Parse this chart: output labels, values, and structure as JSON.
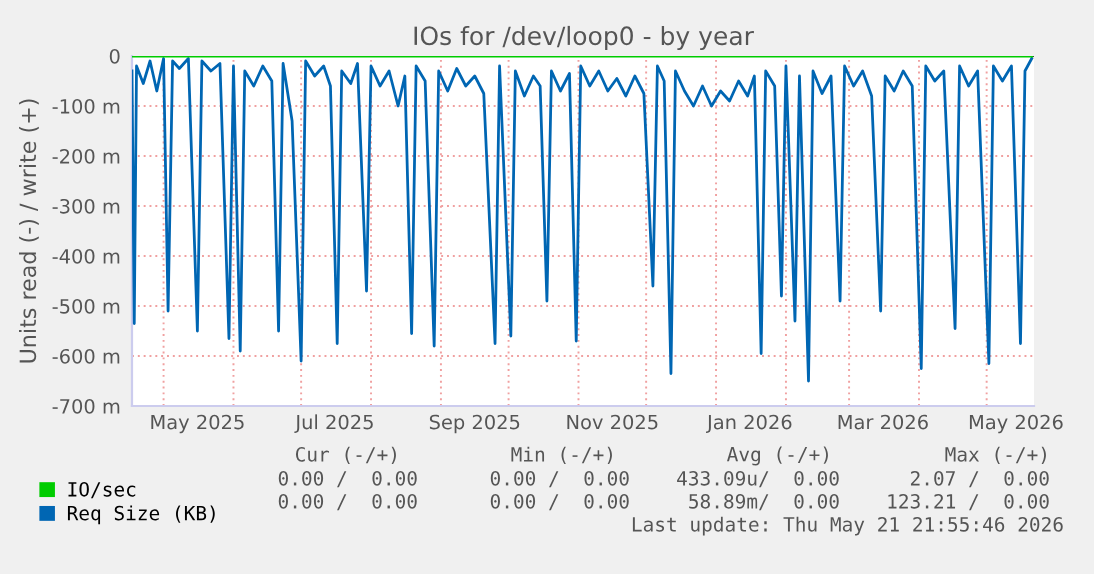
{
  "chart_data": {
    "type": "line",
    "title": "IOs for /dev/loop0 - by year",
    "ylabel": "Units read (-) / write (+)",
    "xlim": [
      "2025-04-17",
      "2026-05-22"
    ],
    "xticks": [
      {
        "value": "2025-05-01",
        "label": null
      },
      {
        "value": "2025-05-16",
        "label": "May 2025"
      },
      {
        "value": "2025-06-01",
        "label": null
      },
      {
        "value": "2025-07-01",
        "label": null
      },
      {
        "value": "2025-07-16",
        "label": "Jul 2025"
      },
      {
        "value": "2025-08-01",
        "label": null
      },
      {
        "value": "2025-09-01",
        "label": null
      },
      {
        "value": "2025-09-16",
        "label": "Sep 2025"
      },
      {
        "value": "2025-10-01",
        "label": null
      },
      {
        "value": "2025-11-01",
        "label": null
      },
      {
        "value": "2025-11-16",
        "label": "Nov 2025"
      },
      {
        "value": "2025-12-01",
        "label": null
      },
      {
        "value": "2026-01-01",
        "label": null
      },
      {
        "value": "2026-01-16",
        "label": "Jan 2026"
      },
      {
        "value": "2026-02-01",
        "label": null
      },
      {
        "value": "2026-03-01",
        "label": null
      },
      {
        "value": "2026-03-16",
        "label": "Mar 2026"
      },
      {
        "value": "2026-04-01",
        "label": null
      },
      {
        "value": "2026-05-01",
        "label": null
      },
      {
        "value": "2026-05-14",
        "label": "May 2026"
      }
    ],
    "ylim": [
      -700,
      0
    ],
    "yticks": [
      {
        "value": -700,
        "label": "-700 m"
      },
      {
        "value": -600,
        "label": "-600 m"
      },
      {
        "value": -500,
        "label": "-500 m"
      },
      {
        "value": -400,
        "label": "-400 m"
      },
      {
        "value": -300,
        "label": "-300 m"
      },
      {
        "value": -200,
        "label": "-200 m"
      },
      {
        "value": -100,
        "label": "-100 m"
      },
      0
    ],
    "grid": true,
    "legend": "bottom",
    "marker": "none",
    "line_style": "solid",
    "series": [
      {
        "name": "IO/sec",
        "color": "#00cc00",
        "x": [
          "2025-04-17",
          "2026-05-21"
        ],
        "values": [
          0,
          0
        ]
      },
      {
        "name": "Req Size (KB)",
        "color": "#0066b3",
        "x": [
          "2025-04-17",
          "2025-04-18",
          "2025-04-19",
          "2025-04-22",
          "2025-04-25",
          "2025-04-28",
          "2025-05-01",
          "2025-05-03",
          "2025-05-05",
          "2025-05-08",
          "2025-05-12",
          "2025-05-16",
          "2025-05-18",
          "2025-05-22",
          "2025-05-26",
          "2025-05-30",
          "2025-06-01",
          "2025-06-04",
          "2025-06-06",
          "2025-06-10",
          "2025-06-14",
          "2025-06-18",
          "2025-06-21",
          "2025-06-23",
          "2025-06-27",
          "2025-07-01",
          "2025-07-03",
          "2025-07-07",
          "2025-07-11",
          "2025-07-14",
          "2025-07-17",
          "2025-07-19",
          "2025-07-23",
          "2025-07-26",
          "2025-07-30",
          "2025-08-01",
          "2025-08-05",
          "2025-08-09",
          "2025-08-13",
          "2025-08-16",
          "2025-08-19",
          "2025-08-21",
          "2025-08-25",
          "2025-08-29",
          "2025-08-31",
          "2025-09-04",
          "2025-09-08",
          "2025-09-12",
          "2025-09-16",
          "2025-09-20",
          "2025-09-25",
          "2025-09-27",
          "2025-10-02",
          "2025-10-04",
          "2025-10-08",
          "2025-10-12",
          "2025-10-15",
          "2025-10-18",
          "2025-10-20",
          "2025-10-24",
          "2025-10-28",
          "2025-10-31",
          "2025-11-02",
          "2025-11-06",
          "2025-11-10",
          "2025-11-14",
          "2025-11-18",
          "2025-11-22",
          "2025-11-26",
          "2025-11-30",
          "2025-12-04",
          "2025-12-06",
          "2025-12-09",
          "2025-12-12",
          "2025-12-14",
          "2025-12-18",
          "2025-12-22",
          "2025-12-26",
          "2025-12-30",
          "2026-01-03",
          "2026-01-07",
          "2026-01-11",
          "2026-01-15",
          "2026-01-18",
          "2026-01-21",
          "2026-01-23",
          "2026-01-27",
          "2026-01-30",
          "2026-02-01",
          "2026-02-05",
          "2026-02-07",
          "2026-02-11",
          "2026-02-13",
          "2026-02-17",
          "2026-02-21",
          "2026-02-25",
          "2026-02-27",
          "2026-03-03",
          "2026-03-07",
          "2026-03-11",
          "2026-03-15",
          "2026-03-17",
          "2026-03-21",
          "2026-03-25",
          "2026-03-29",
          "2026-04-02",
          "2026-04-04",
          "2026-04-08",
          "2026-04-12",
          "2026-04-17",
          "2026-04-19",
          "2026-04-23",
          "2026-04-27",
          "2026-05-02",
          "2026-05-04",
          "2026-05-08",
          "2026-05-12",
          "2026-05-16",
          "2026-05-18",
          "2026-05-21"
        ],
        "values": [
          -30,
          -535,
          -20,
          -55,
          -10,
          -70,
          -5,
          -510,
          -10,
          -25,
          -5,
          -550,
          -10,
          -30,
          -15,
          -565,
          -20,
          -590,
          -30,
          -60,
          -20,
          -50,
          -550,
          -15,
          -130,
          -610,
          -10,
          -40,
          -20,
          -60,
          -575,
          -30,
          -55,
          -15,
          -470,
          -20,
          -60,
          -30,
          -100,
          -40,
          -555,
          -20,
          -50,
          -580,
          -30,
          -70,
          -25,
          -60,
          -40,
          -75,
          -575,
          -20,
          -560,
          -30,
          -80,
          -40,
          -60,
          -490,
          -30,
          -70,
          -35,
          -570,
          -20,
          -60,
          -30,
          -70,
          -45,
          -80,
          -40,
          -75,
          -460,
          -20,
          -50,
          -635,
          -30,
          -70,
          -100,
          -60,
          -100,
          -70,
          -90,
          -50,
          -80,
          -40,
          -595,
          -30,
          -60,
          -480,
          -20,
          -530,
          -40,
          -650,
          -30,
          -75,
          -40,
          -490,
          -20,
          -60,
          -30,
          -80,
          -510,
          -40,
          -70,
          -30,
          -60,
          -625,
          -20,
          -50,
          -30,
          -545,
          -20,
          -60,
          -30,
          -615,
          -20,
          -50,
          -20,
          -575,
          -30,
          -5
        ]
      }
    ],
    "annotations": [
      "Cur (-/+)",
      "Min (-/+)",
      "Avg (-/+)",
      "Max (-/+)",
      "0.00 /  0.00",
      "0.00 /  0.00",
      "433.09u/  0.00",
      "2.07 /  0.00",
      "0.00 /  0.00",
      "0.00 /  0.00",
      "58.89m/  0.00",
      "123.21 /  0.00",
      "Last update: Thu May 21 21:55:46 2026"
    ]
  }
}
